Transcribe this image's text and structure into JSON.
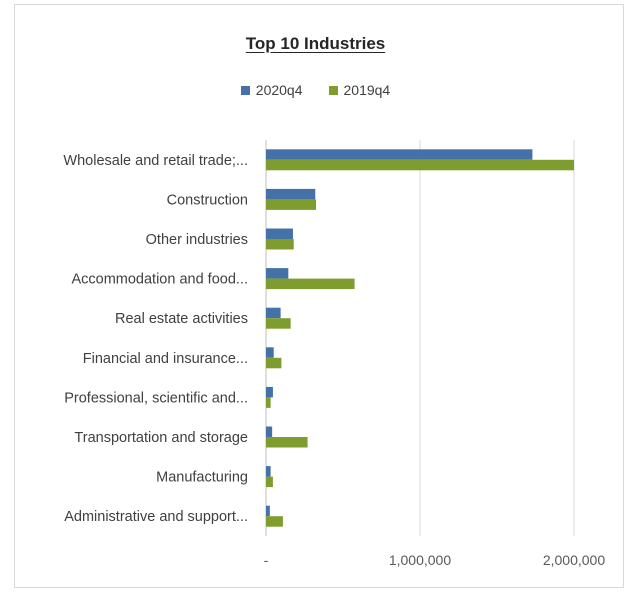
{
  "chart_data": {
    "type": "bar",
    "orientation": "horizontal",
    "title": "Top 10 Industries",
    "categories": [
      "Wholesale and retail trade;...",
      "Construction",
      "Other industries",
      "Accommodation and food...",
      "Real estate activities",
      "Financial and insurance...",
      "Professional, scientific and...",
      "Transportation and storage",
      "Manufacturing",
      "Administrative and support..."
    ],
    "series": [
      {
        "name": "2020q4",
        "color": "#4472a8",
        "values": [
          1730000,
          320000,
          175000,
          145000,
          95000,
          50000,
          45000,
          40000,
          30000,
          25000
        ]
      },
      {
        "name": "2019q4",
        "color": "#7f9d2e",
        "values": [
          2000000,
          325000,
          180000,
          575000,
          160000,
          100000,
          30000,
          270000,
          45000,
          110000
        ]
      }
    ],
    "xlim": [
      0,
      2000000
    ],
    "xticks": [
      "-",
      "1,000,000",
      "2,000,000"
    ],
    "xtick_values": [
      0,
      1000000,
      2000000
    ],
    "grid": true,
    "legend_position": "top"
  }
}
